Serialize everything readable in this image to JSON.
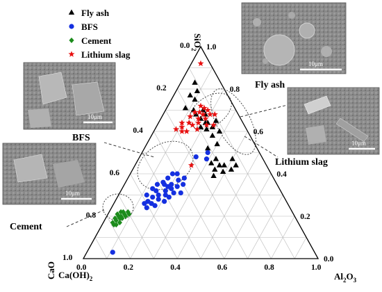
{
  "chart_data": {
    "type": "scatter",
    "subtype": "ternary",
    "axes": {
      "sio2": {
        "label": "SiO",
        "subscript": "2",
        "ticks": [
          "0.0",
          "0.2",
          "0.4",
          "0.6",
          "0.8",
          "1.0"
        ]
      },
      "al2o3": {
        "label": "Al",
        "sub1": "2",
        "mid": "O",
        "sub2": "3",
        "ticks": [
          "0.0",
          "0.2",
          "0.4",
          "0.6",
          "0.8",
          "1.0"
        ]
      },
      "cao": {
        "label": "CaO",
        "ticks": [
          "0.0",
          "0.2",
          "0.4",
          "0.6",
          "0.8",
          "1.0"
        ],
        "extra_label": "Ca(OH)",
        "extra_subscript": "2"
      }
    },
    "grid": true,
    "legend_position": "top-left",
    "series": [
      {
        "name": "Fly ash",
        "marker": "triangle",
        "color": "#000000",
        "points": [
          [
            0.06,
            0.83
          ],
          [
            0.09,
            0.79
          ],
          [
            0.07,
            0.77
          ],
          [
            0.1,
            0.75
          ],
          [
            0.08,
            0.71
          ],
          [
            0.12,
            0.7
          ],
          [
            0.14,
            0.68
          ],
          [
            0.18,
            0.68
          ],
          [
            0.2,
            0.64
          ],
          [
            0.16,
            0.7
          ],
          [
            0.24,
            0.62
          ],
          [
            0.26,
            0.58
          ],
          [
            0.28,
            0.6
          ],
          [
            0.3,
            0.54
          ],
          [
            0.27,
            0.52
          ],
          [
            0.21,
            0.64
          ],
          [
            0.17,
            0.66
          ],
          [
            0.19,
            0.62
          ],
          [
            0.22,
            0.61
          ],
          [
            0.24,
            0.65
          ],
          [
            0.36,
            0.44
          ],
          [
            0.33,
            0.47
          ],
          [
            0.38,
            0.44
          ],
          [
            0.35,
            0.42
          ],
          [
            0.32,
            0.45
          ],
          [
            0.4,
            0.47
          ],
          [
            0.43,
            0.44
          ],
          [
            0.36,
            0.39
          ],
          [
            0.39,
            0.41
          ],
          [
            0.42,
            0.42
          ]
        ]
      },
      {
        "name": "BFS",
        "marker": "circle",
        "color": "#1530e0",
        "points": [
          [
            0.18,
            0.4
          ],
          [
            0.16,
            0.36
          ],
          [
            0.15,
            0.32
          ],
          [
            0.17,
            0.35
          ],
          [
            0.2,
            0.35
          ],
          [
            0.22,
            0.37
          ],
          [
            0.19,
            0.32
          ],
          [
            0.17,
            0.3
          ],
          [
            0.15,
            0.29
          ],
          [
            0.13,
            0.33
          ],
          [
            0.14,
            0.27
          ],
          [
            0.21,
            0.33
          ],
          [
            0.23,
            0.34
          ],
          [
            0.2,
            0.3
          ],
          [
            0.18,
            0.28
          ],
          [
            0.16,
            0.26
          ],
          [
            0.12,
            0.3
          ],
          [
            0.22,
            0.29
          ],
          [
            0.25,
            0.35
          ],
          [
            0.26,
            0.31
          ],
          [
            0.13,
            0.26
          ],
          [
            0.24,
            0.38
          ],
          [
            0.19,
            0.34
          ],
          [
            0.14,
            0.35
          ],
          [
            0.21,
            0.27
          ],
          [
            0.17,
            0.38
          ],
          [
            0.2,
            0.4
          ],
          [
            0.23,
            0.31
          ],
          [
            0.15,
            0.24
          ],
          [
            0.18,
            0.25
          ],
          [
            0.29,
            0.47
          ],
          [
            0.24,
            0.48
          ],
          [
            0.28,
            0.5
          ],
          [
            0.11,
            0.03
          ]
        ]
      },
      {
        "name": "Cement",
        "marker": "diamond",
        "color": "#1c8c1c",
        "points": [
          [
            0.04,
            0.19
          ],
          [
            0.05,
            0.2
          ],
          [
            0.06,
            0.2
          ],
          [
            0.07,
            0.21
          ],
          [
            0.05,
            0.18
          ],
          [
            0.06,
            0.19
          ],
          [
            0.08,
            0.2
          ],
          [
            0.04,
            0.21
          ],
          [
            0.05,
            0.22
          ],
          [
            0.07,
            0.19
          ],
          [
            0.06,
            0.22
          ],
          [
            0.08,
            0.22
          ],
          [
            0.09,
            0.21
          ],
          [
            0.05,
            0.16
          ],
          [
            0.07,
            0.17
          ],
          [
            0.04,
            0.17
          ],
          [
            0.06,
            0.16
          ]
        ]
      },
      {
        "name": "Lithium slag",
        "marker": "star",
        "color": "#e81010",
        "points": [
          [
            0.04,
            0.92
          ],
          [
            0.14,
            0.72
          ],
          [
            0.15,
            0.69
          ],
          [
            0.17,
            0.68
          ],
          [
            0.18,
            0.7
          ],
          [
            0.16,
            0.66
          ],
          [
            0.19,
            0.66
          ],
          [
            0.13,
            0.69
          ],
          [
            0.12,
            0.67
          ],
          [
            0.1,
            0.64
          ],
          [
            0.11,
            0.62
          ],
          [
            0.15,
            0.63
          ],
          [
            0.13,
            0.64
          ],
          [
            0.17,
            0.64
          ],
          [
            0.21,
            0.63
          ],
          [
            0.14,
            0.6
          ],
          [
            0.12,
            0.6
          ],
          [
            0.18,
            0.61
          ],
          [
            0.09,
            0.61
          ],
          [
            0.2,
            0.68
          ],
          [
            0.22,
            0.68
          ],
          [
            0.24,
            0.63
          ],
          [
            0.16,
            0.71
          ],
          [
            0.24,
            0.44
          ]
        ]
      }
    ],
    "annotations": {
      "fly_ash": "Fly ash",
      "bfs": "BFS",
      "cement": "Cement",
      "lithium_slag": "Lithium slag"
    },
    "scale_bars": [
      "10μm",
      "10μm",
      "10μm",
      "10μm"
    ]
  }
}
